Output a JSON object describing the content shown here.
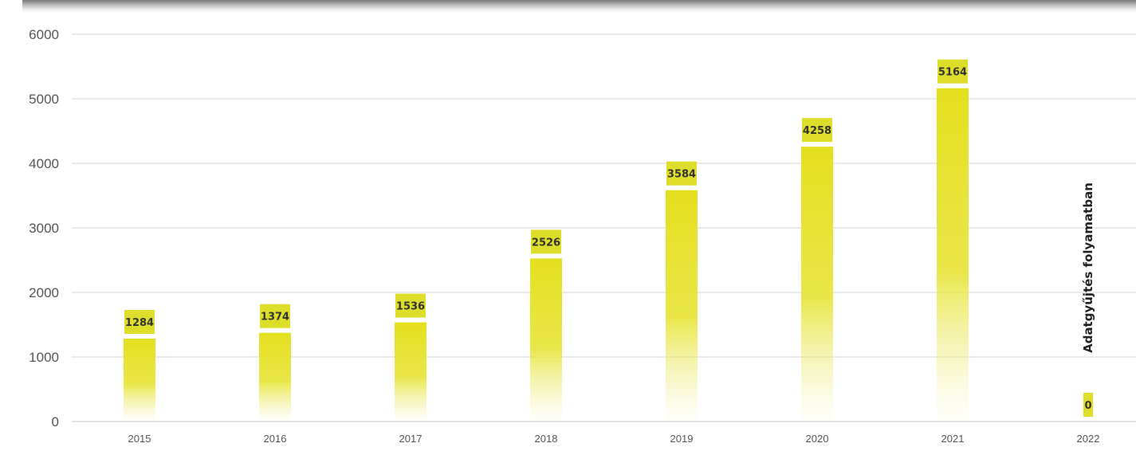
{
  "chart_data": {
    "type": "bar",
    "title": "",
    "xlabel": "",
    "ylabel": "",
    "categories": [
      "2015",
      "2016",
      "2017",
      "2018",
      "2019",
      "2020",
      "2021",
      "2022"
    ],
    "values": [
      1284,
      1374,
      1536,
      2526,
      3584,
      4258,
      5164,
      0
    ],
    "data_labels": [
      "1284",
      "1374",
      "1536",
      "2526",
      "3584",
      "4258",
      "5164",
      "0"
    ],
    "ylim": [
      0,
      6000
    ],
    "yticks": [
      0,
      1000,
      2000,
      3000,
      4000,
      5000,
      6000
    ],
    "ytick_labels": [
      "0",
      "1000",
      "2000",
      "3000",
      "4000",
      "5000",
      "6000"
    ],
    "grid": true,
    "legend": "none",
    "annotation": "Adatgyűjtés folyamatban",
    "bar_color": "#e3e01e",
    "label_bg_color": "#dede2a",
    "grid_color": "#dedede"
  }
}
